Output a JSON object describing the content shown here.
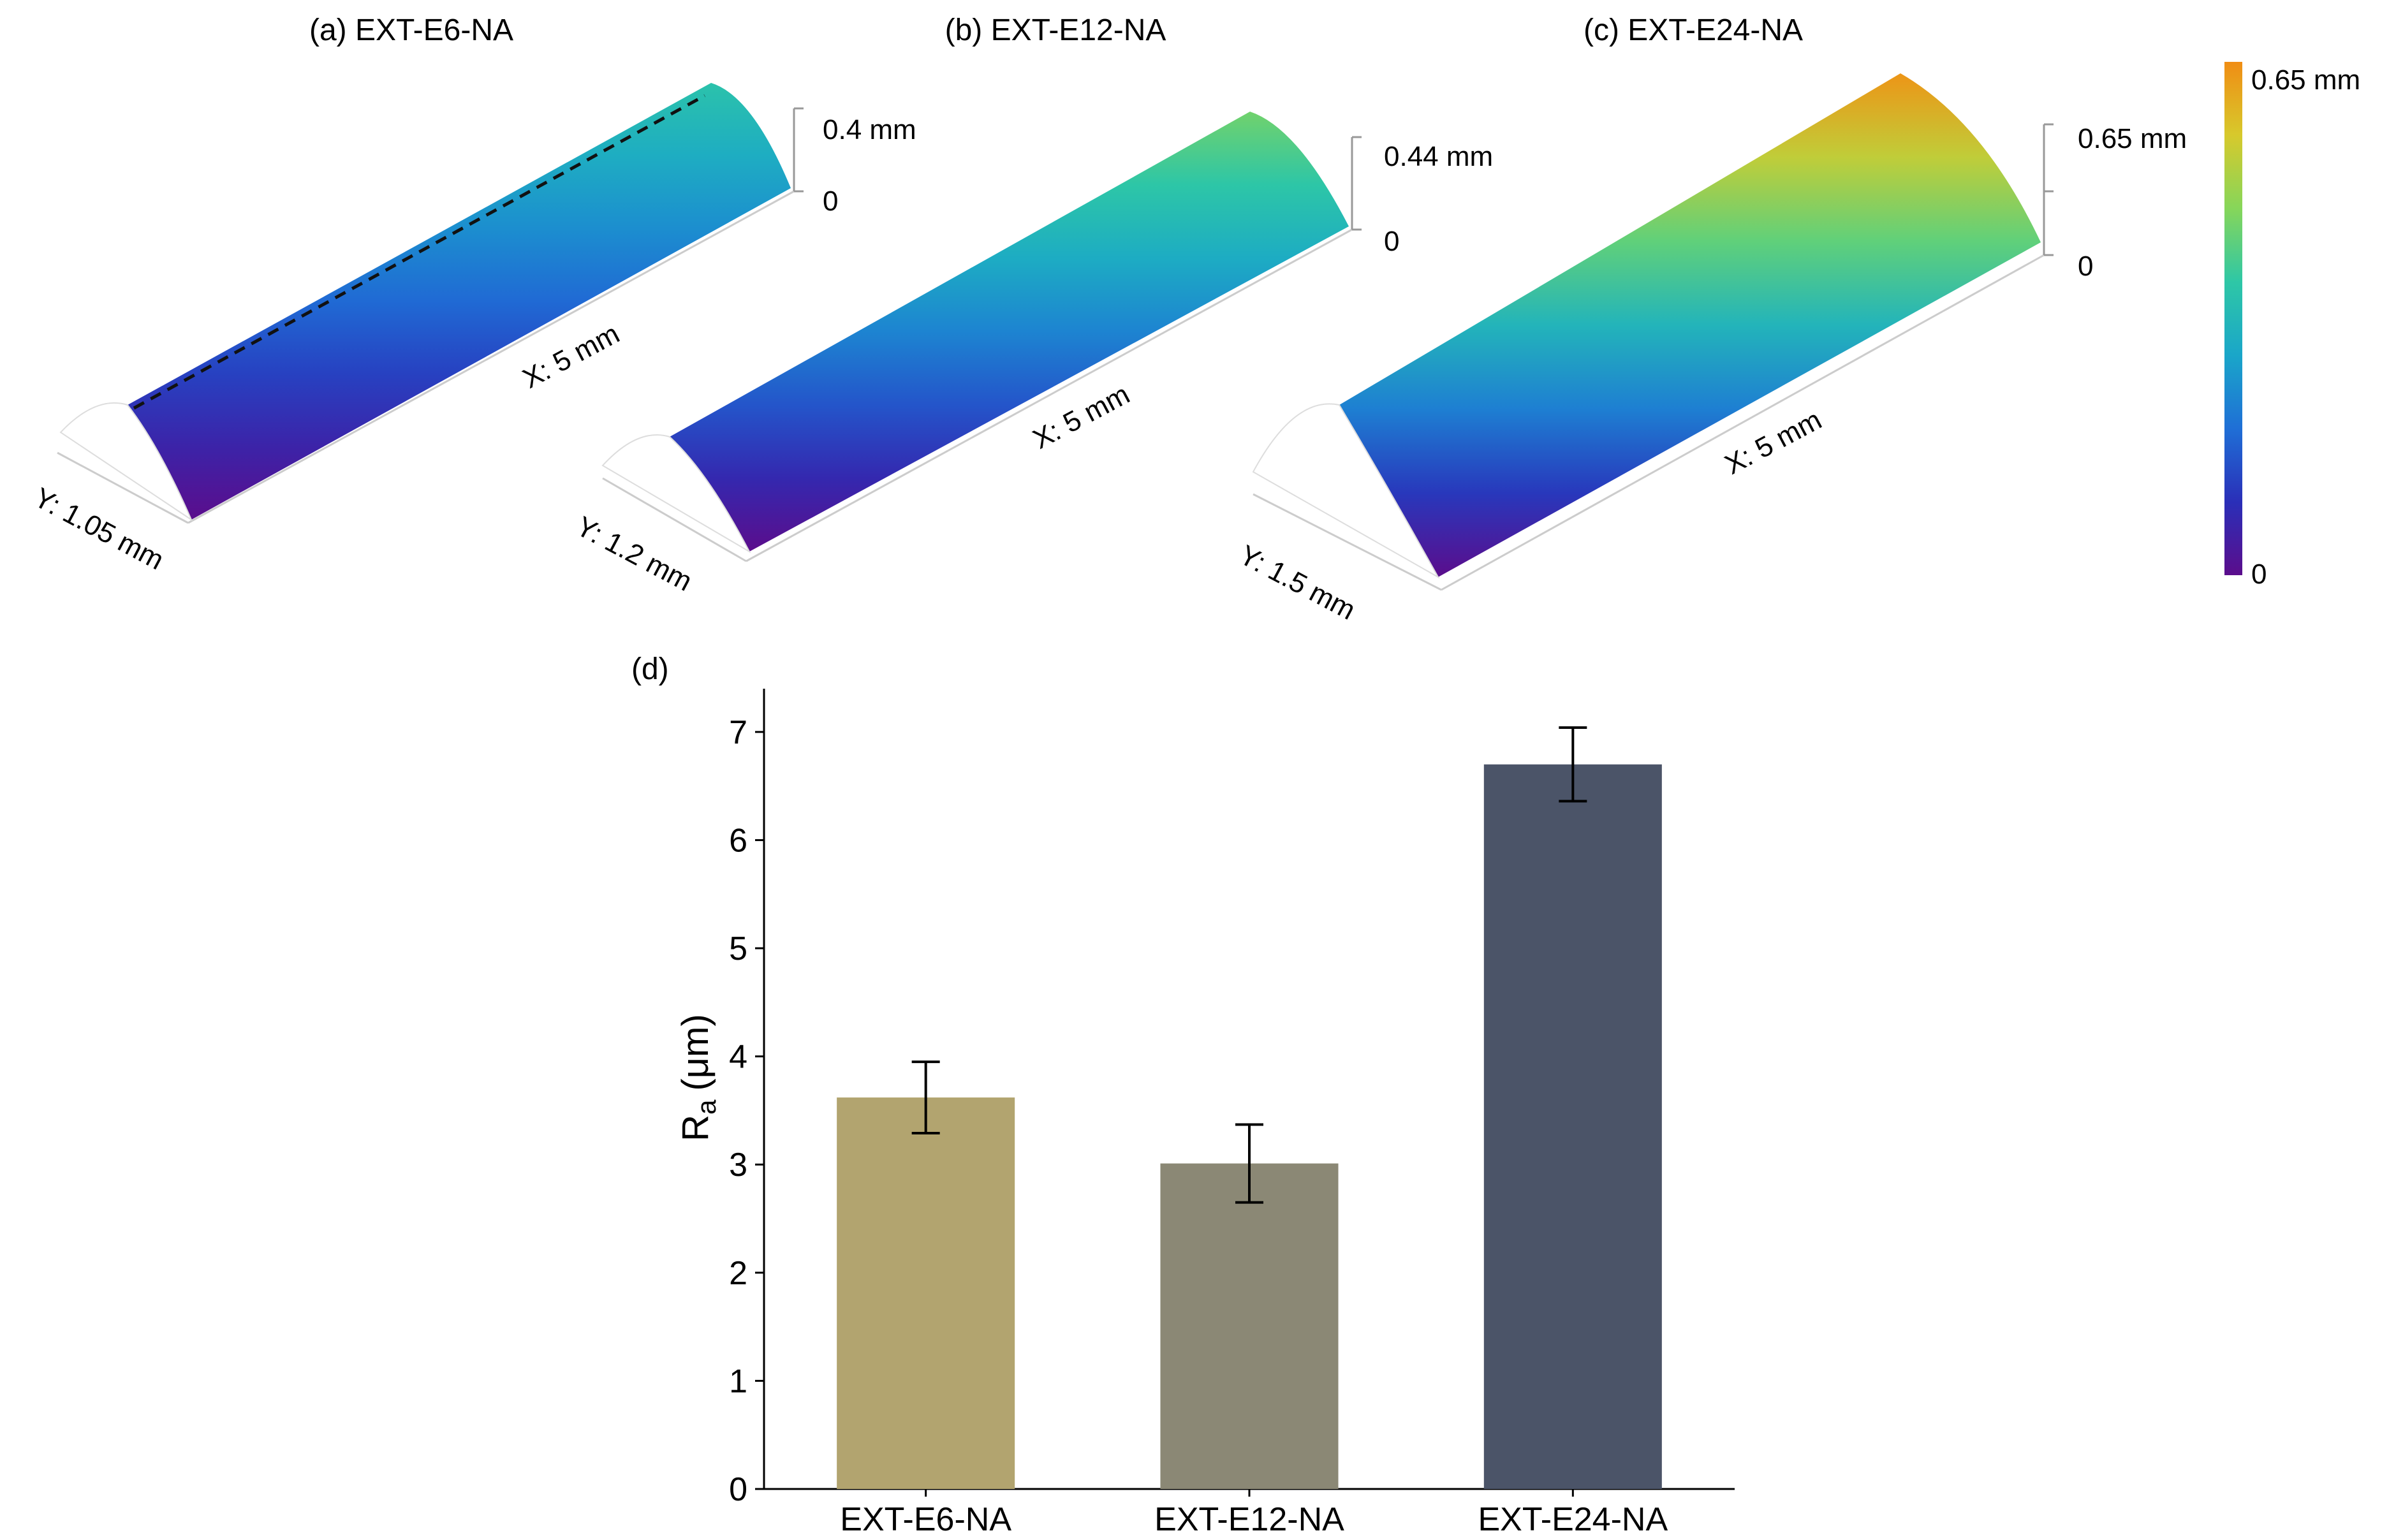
{
  "colors": {
    "colormap": [
      "#5b0d8c",
      "#2a2fb8",
      "#1f6fd6",
      "#1aa6c9",
      "#2ec7a6",
      "#86d65a",
      "#d7c92c",
      "#f08d14"
    ],
    "axis": "#000000",
    "box_lines": "#cccccc",
    "dash_line": "#111111"
  },
  "colorbar": {
    "max_label": "0.65 mm",
    "min_label": "0"
  },
  "surfaces": [
    {
      "panel_label": "(a) EXT-E6-NA",
      "z_max_label": "0.4 mm",
      "z_min_label": "0",
      "x_label": "X: 5 mm",
      "y_label": "Y: 1.05 mm",
      "peak_fraction": 0.55,
      "dashed_centerline": true
    },
    {
      "panel_label": "(b) EXT-E12-NA",
      "z_max_label": "0.44 mm",
      "z_min_label": "0",
      "x_label": "X: 5 mm",
      "y_label": "Y: 1.2 mm",
      "peak_fraction": 0.68,
      "dashed_centerline": false
    },
    {
      "panel_label": "(c) EXT-E24-NA",
      "z_max_label": "0.65 mm",
      "z_min_label": "0",
      "x_label": "X: 5 mm",
      "y_label": "Y: 1.5 mm",
      "peak_fraction": 0.98,
      "dashed_centerline": false
    }
  ],
  "chart_data": {
    "panel_label": "(d)",
    "type": "bar",
    "categories": [
      "EXT-E6-NA",
      "EXT-E12-NA",
      "EXT-E24-NA"
    ],
    "values": [
      3.62,
      3.01,
      6.7
    ],
    "errors": [
      0.33,
      0.36,
      0.34
    ],
    "colors": [
      "#b2a46f",
      "#8b8875",
      "#4b5468"
    ],
    "ylabel_main": "R",
    "ylabel_sub": "a",
    "ylabel_unit": "(μm)",
    "ylim": [
      0,
      7.4
    ],
    "yticks": [
      "0",
      "1",
      "2",
      "3",
      "4",
      "5",
      "6",
      "7"
    ],
    "grid": false
  }
}
